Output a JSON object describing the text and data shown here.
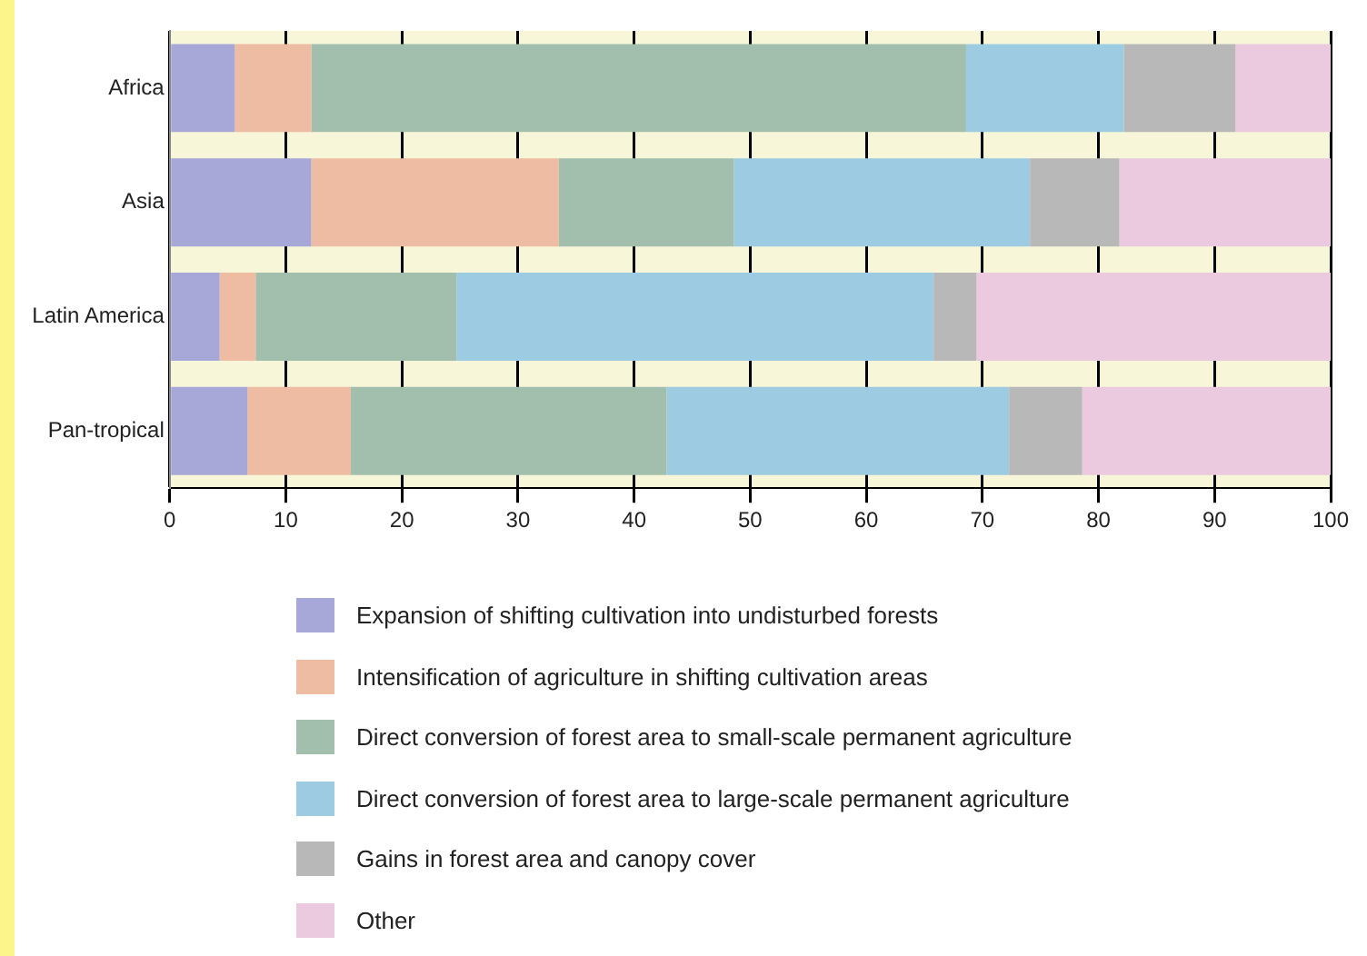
{
  "chart_data": {
    "type": "bar",
    "orientation": "horizontal",
    "stacked": true,
    "categories": [
      "Africa",
      "Asia",
      "Latin America",
      "Pan-tropical"
    ],
    "series": [
      {
        "name": "Expansion of shifting cultivation into undisturbed forests",
        "color": "#a8a8d8",
        "values": [
          5.6,
          12.2,
          4.3,
          6.7
        ]
      },
      {
        "name": "Intensification of agriculture in shifting cultivation areas",
        "color": "#edbca3",
        "values": [
          6.6,
          21.3,
          3.1,
          8.9
        ]
      },
      {
        "name": "Direct conversion of forest area to small-scale permanent agriculture",
        "color": "#a2bfae",
        "values": [
          56.4,
          15.1,
          17.3,
          27.2
        ]
      },
      {
        "name": "Direct conversion of forest area to large-scale permanent agriculture",
        "color": "#9ccbe2",
        "values": [
          13.6,
          25.5,
          41.1,
          29.5
        ]
      },
      {
        "name": "Gains in forest area and canopy cover",
        "color": "#b8b8b8",
        "values": [
          9.6,
          7.7,
          3.7,
          6.3
        ]
      },
      {
        "name": "Other",
        "color": "#ebcae0",
        "values": [
          8.2,
          18.2,
          30.5,
          21.4
        ]
      }
    ],
    "xlim": [
      0,
      100
    ],
    "xticks": [
      0,
      10,
      20,
      30,
      40,
      50,
      60,
      70,
      80,
      90,
      100
    ],
    "grid": "x",
    "legend": "bottom",
    "bands": [
      {
        "axis": "x",
        "from": 0,
        "to": 100,
        "color": "#f8f6d8"
      }
    ]
  }
}
